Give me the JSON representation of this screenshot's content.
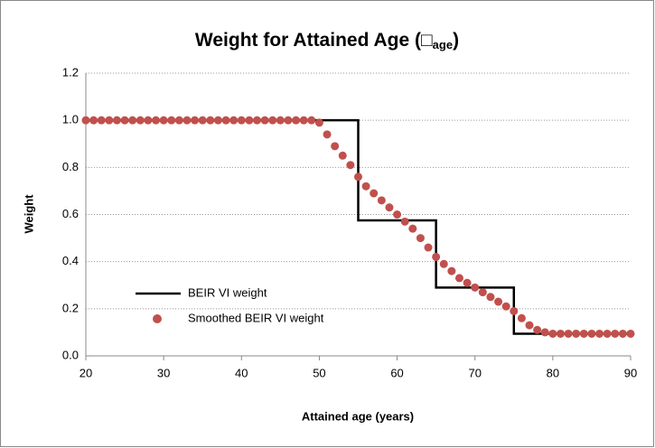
{
  "chart_data": {
    "type": "line",
    "title": "Weight for Attained Age (□",
    "title_subscript": "age",
    "title_suffix": ")",
    "x_label": "Attained age (years)",
    "y_label": "Weight",
    "xlim": [
      20,
      90
    ],
    "xticks": [
      20,
      30,
      40,
      50,
      60,
      70,
      80,
      90
    ],
    "ylim": [
      0,
      1.2
    ],
    "yticks": [
      {
        "value": 0,
        "label": "0.0"
      },
      {
        "value": 0.2,
        "label": "0.2"
      },
      {
        "value": 0.4,
        "label": "0.4"
      },
      {
        "value": 0.6,
        "label": "0.6"
      },
      {
        "value": 0.8,
        "label": "0.8"
      },
      {
        "value": 1,
        "label": "1.0"
      },
      {
        "value": 1.2,
        "label": "1.2"
      }
    ],
    "grid": true,
    "legend": "lower left",
    "series": [
      {
        "name": "BEIR VI weight",
        "type": "line",
        "color": "#000000",
        "x": [
          20,
          55,
          55,
          65,
          65,
          75,
          75,
          90
        ],
        "values": [
          1.0,
          1.0,
          0.575,
          0.575,
          0.29,
          0.29,
          0.094,
          0.094
        ]
      },
      {
        "name": "Smoothed BEIR VI weight",
        "type": "scatter",
        "color": "#c0504d",
        "x": [
          20,
          21,
          22,
          23,
          24,
          25,
          26,
          27,
          28,
          29,
          30,
          31,
          32,
          33,
          34,
          35,
          36,
          37,
          38,
          39,
          40,
          41,
          42,
          43,
          44,
          45,
          46,
          47,
          48,
          49,
          50,
          51,
          52,
          53,
          54,
          55,
          56,
          57,
          58,
          59,
          60,
          61,
          62,
          63,
          64,
          65,
          66,
          67,
          68,
          69,
          70,
          71,
          72,
          73,
          74,
          75,
          76,
          77,
          78,
          79,
          80,
          81,
          82,
          83,
          84,
          85,
          86,
          87,
          88,
          89,
          90
        ],
        "values": [
          1,
          1,
          1,
          1,
          1,
          1,
          1,
          1,
          1,
          1,
          1,
          1,
          1,
          1,
          1,
          1,
          1,
          1,
          1,
          1,
          1,
          1,
          1,
          1,
          1,
          1,
          1,
          1,
          1,
          1,
          0.99,
          0.94,
          0.89,
          0.85,
          0.81,
          0.76,
          0.72,
          0.69,
          0.66,
          0.63,
          0.6,
          0.57,
          0.54,
          0.5,
          0.46,
          0.42,
          0.39,
          0.36,
          0.33,
          0.31,
          0.29,
          0.27,
          0.25,
          0.23,
          0.21,
          0.19,
          0.16,
          0.13,
          0.11,
          0.1,
          0.094,
          0.094,
          0.094,
          0.094,
          0.094,
          0.094,
          0.094,
          0.094,
          0.094,
          0.094,
          0.094
        ]
      }
    ]
  }
}
